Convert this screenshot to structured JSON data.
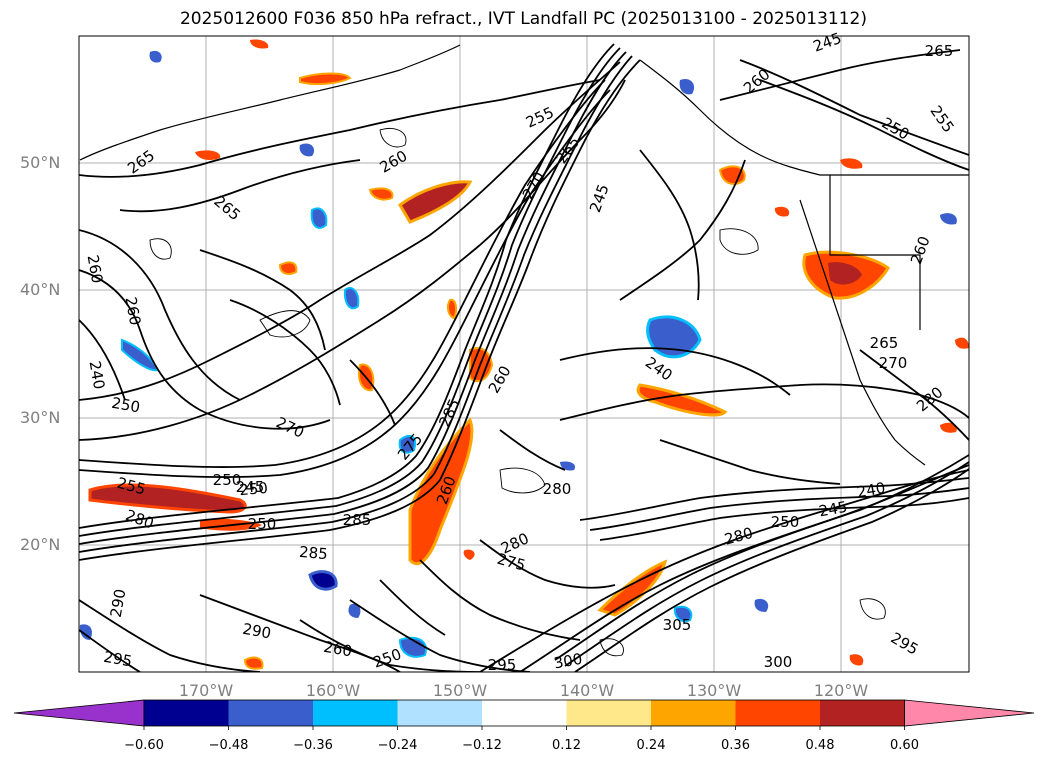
{
  "title": "2025012600 F036 850 hPa refract., IVT Landfall PC (2025013100 - 2025013112)",
  "lat_labels": [
    "50°N",
    "40°N",
    "30°N",
    "20°N"
  ],
  "lon_labels": [
    "170°W",
    "160°W",
    "150°W",
    "140°W",
    "130°W",
    "120°W"
  ],
  "colorbar": {
    "ticks": [
      "−0.60",
      "−0.48",
      "−0.36",
      "−0.24",
      "−0.12",
      "0.12",
      "0.24",
      "0.36",
      "0.48",
      "0.60"
    ],
    "colors": [
      "#9932cc",
      "#000090",
      "#3a5fcd",
      "#00bfff",
      "#b0e2ff",
      "#ffffff",
      "#ffe88a",
      "#ffa500",
      "#ff4500",
      "#b22222",
      "#ff88aa"
    ]
  },
  "contour_labels": [
    "265",
    "265",
    "260",
    "255",
    "265",
    "270",
    "245",
    "260",
    "250",
    "240",
    "250",
    "260",
    "260",
    "250",
    "270",
    "275",
    "285",
    "280",
    "280",
    "275",
    "260",
    "250",
    "245",
    "255",
    "280",
    "285",
    "285",
    "290",
    "290",
    "295",
    "260",
    "250",
    "295",
    "300",
    "305",
    "300",
    "295",
    "280",
    "270",
    "265",
    "260",
    "245",
    "240",
    "250",
    "245",
    "280",
    "260",
    "265",
    "250",
    "240",
    "255"
  ]
}
